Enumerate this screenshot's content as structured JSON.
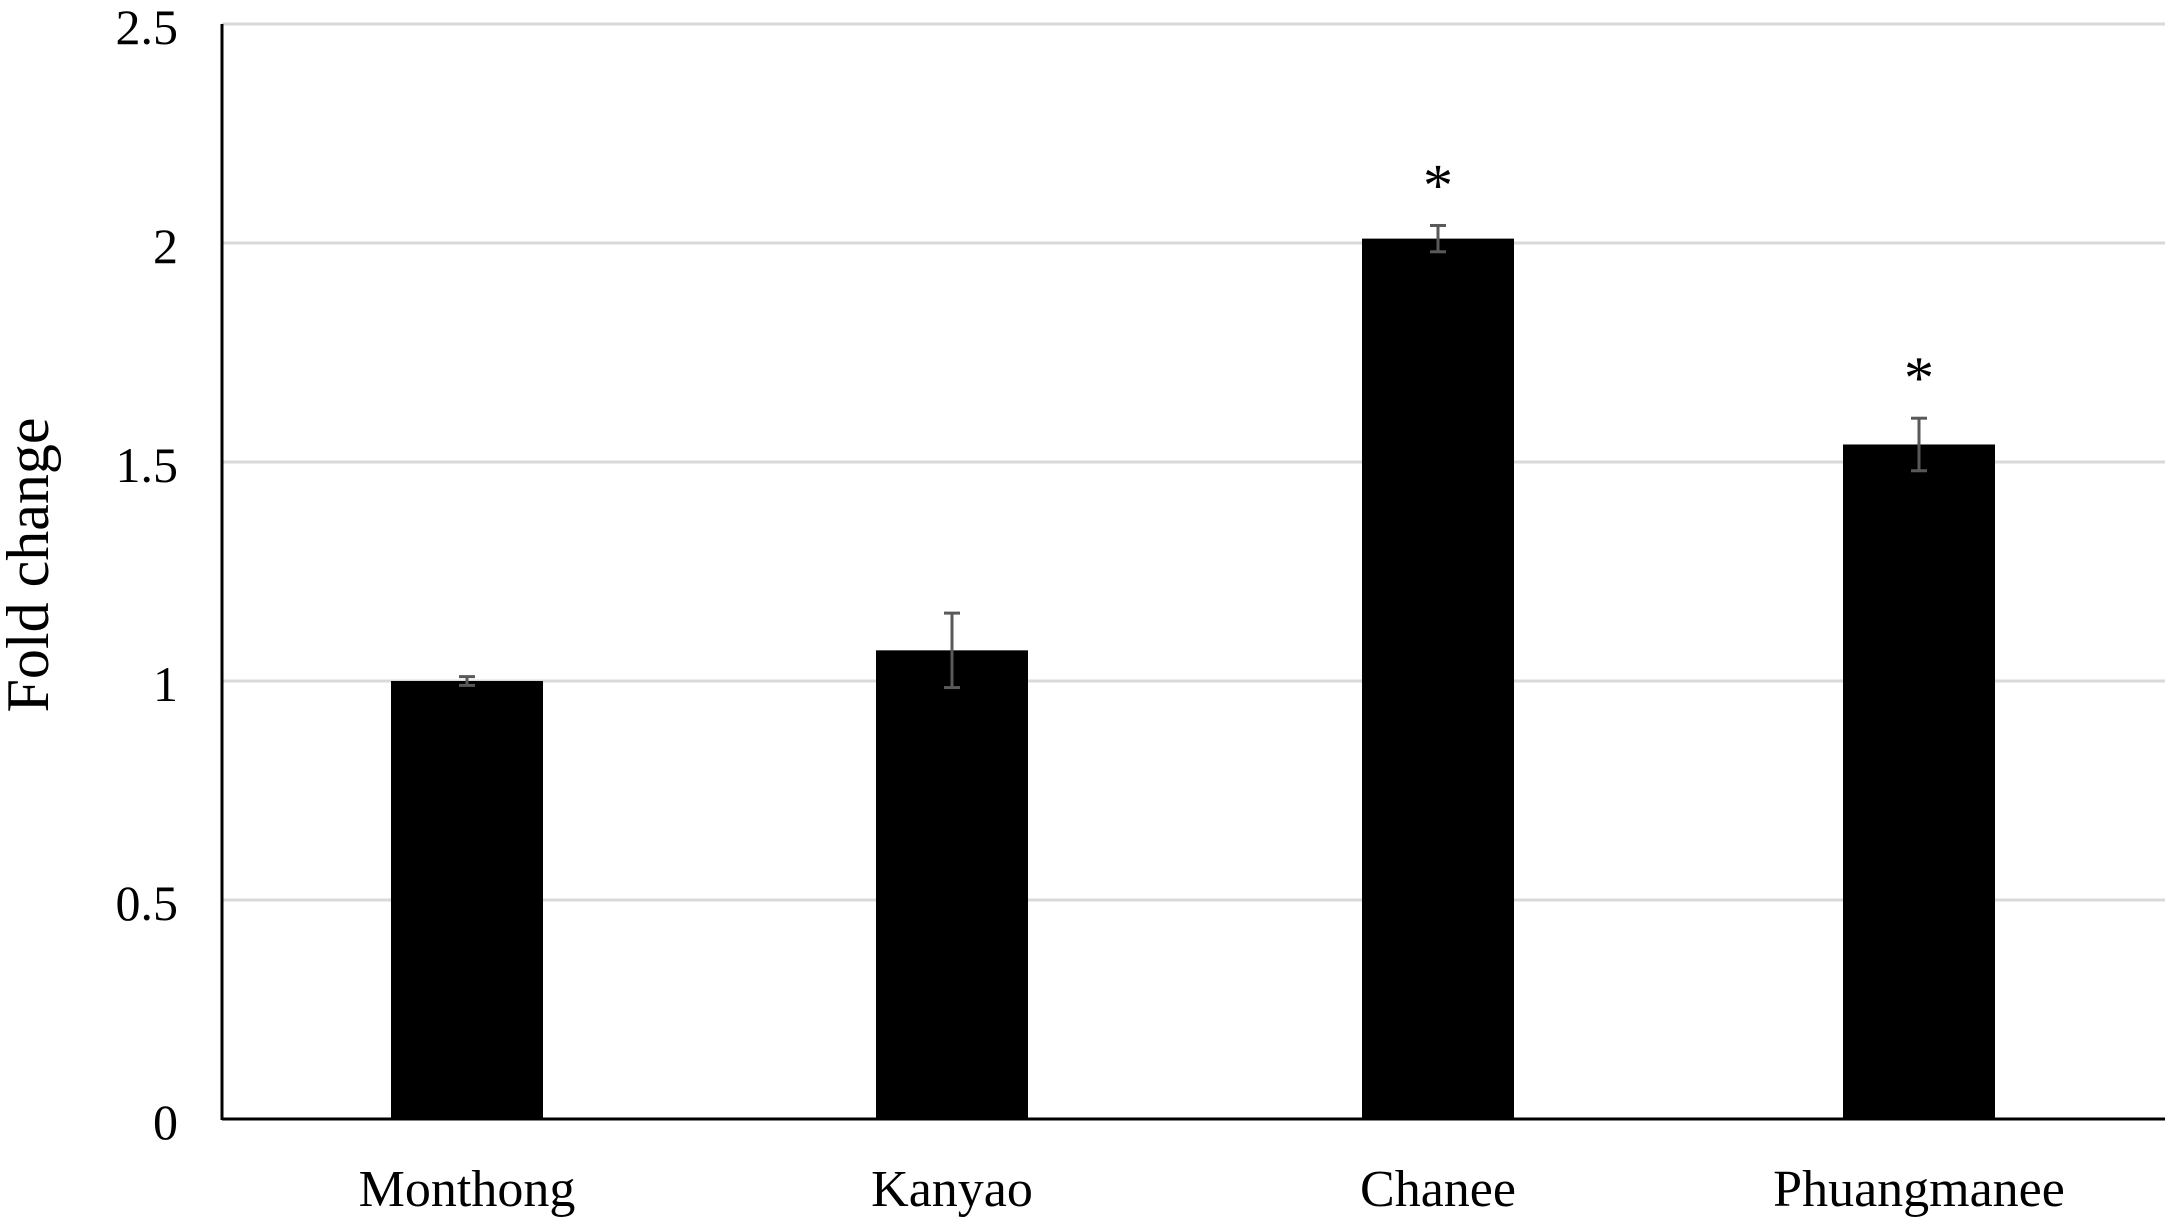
{
  "chart_data": {
    "type": "bar",
    "title": "",
    "xlabel": "",
    "ylabel": "Fold change",
    "ylim": [
      0,
      2.5
    ],
    "yticks": [
      0,
      0.5,
      1,
      1.5,
      2,
      2.5
    ],
    "ytick_labels": [
      "0",
      "0.5",
      "1",
      "1.5",
      "2",
      "2.5"
    ],
    "grid": true,
    "legend": "none",
    "categories": [
      "Monthong",
      "Kanyao",
      "Chanee",
      "Phuangmanee"
    ],
    "values": [
      1.0,
      1.07,
      2.01,
      1.54
    ],
    "errors": [
      0.01,
      0.085,
      0.03,
      0.06
    ],
    "annotations": [
      "",
      "",
      "*",
      "*"
    ],
    "colors": {
      "bar": "#000000",
      "error_bar": "#595959",
      "grid": "#d9d9d9",
      "axis": "#000000"
    }
  }
}
